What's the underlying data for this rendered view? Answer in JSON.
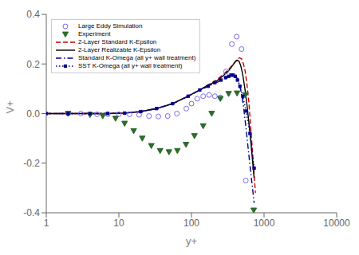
{
  "chart_data": {
    "type": "line",
    "xlabel": "y+",
    "ylabel": "V+",
    "log": "x",
    "xlim": [
      1,
      10000
    ],
    "ylim": [
      -0.4,
      0.4
    ],
    "xticks": [
      1,
      10,
      100,
      1000,
      10000
    ],
    "yticks": [
      -0.4,
      -0.2,
      {
        "value": 0.0,
        "label": "0.0"
      },
      0.2,
      0.4
    ],
    "grid": false,
    "legend": "upper left",
    "series": [
      {
        "name": "Large Eddy Simulation",
        "type": "scatter",
        "color": "#7B68EE",
        "marker": "circle",
        "line_style": "none",
        "x": [
          2,
          3,
          5,
          7,
          10,
          14,
          19,
          26,
          35,
          47,
          63,
          85,
          100,
          120,
          145,
          175,
          210,
          250,
          300,
          360,
          420,
          490,
          560
        ],
        "values": [
          0.0,
          0.0,
          -0.003,
          -0.003,
          -0.003,
          -0.003,
          -0.005,
          -0.01,
          -0.012,
          -0.01,
          0.0,
          0.02,
          0.04,
          0.06,
          0.07,
          0.075,
          0.07,
          0.065,
          0.17,
          0.28,
          0.31,
          0.26,
          -0.27
        ]
      },
      {
        "name": "Experiment",
        "type": "scatter",
        "color": "#2E6B2E",
        "marker": "triangle_down",
        "line_style": "none",
        "x": [
          2,
          4,
          6,
          9,
          12,
          16,
          21,
          28,
          37,
          49,
          64,
          84,
          110,
          145,
          190,
          250,
          325,
          425,
          555,
          720
        ],
        "values": [
          0.0,
          -0.005,
          -0.01,
          -0.02,
          -0.04,
          -0.07,
          -0.1,
          -0.13,
          -0.15,
          -0.155,
          -0.15,
          -0.125,
          -0.09,
          -0.05,
          0.0,
          0.06,
          0.08,
          0.082,
          0.075,
          -0.39
        ]
      },
      {
        "name": "2-Layer Standard K-Epsilon",
        "type": "line",
        "color": "#CC0000",
        "marker": "none",
        "line_style": "dashed",
        "x": [
          1,
          2,
          4,
          7,
          12,
          20,
          33,
          55,
          90,
          130,
          170,
          220,
          280,
          340,
          390,
          430,
          460,
          490,
          520,
          550,
          580,
          620,
          680,
          760
        ],
        "values": [
          0.0,
          0.0,
          0.0,
          0.0,
          0.002,
          0.008,
          0.02,
          0.04,
          0.07,
          0.095,
          0.115,
          0.135,
          0.16,
          0.185,
          0.205,
          0.22,
          0.225,
          0.22,
          0.2,
          0.17,
          0.12,
          0.04,
          -0.12,
          -0.32
        ]
      },
      {
        "name": "2-Layer Realizable K-Epsilon",
        "type": "line",
        "color": "#000000",
        "marker": "none",
        "line_style": "solid",
        "x": [
          1,
          2,
          4,
          7,
          12,
          20,
          33,
          55,
          90,
          130,
          170,
          220,
          280,
          330,
          370,
          405,
          430,
          455,
          480,
          510,
          545,
          590,
          650,
          730
        ],
        "values": [
          0.0,
          0.0,
          0.0,
          0.0,
          0.002,
          0.008,
          0.02,
          0.04,
          0.07,
          0.095,
          0.115,
          0.13,
          0.155,
          0.175,
          0.195,
          0.21,
          0.215,
          0.21,
          0.19,
          0.155,
          0.1,
          0.02,
          -0.1,
          -0.26
        ]
      },
      {
        "name": "Standard K-Omega (all y+ wall treatment)",
        "type": "line",
        "color": "#00008B",
        "marker": "none",
        "line_style": "dashdot",
        "x": [
          1,
          2,
          4,
          7,
          12,
          20,
          33,
          55,
          90,
          130,
          170,
          220,
          270,
          315,
          345,
          370,
          390,
          410,
          430,
          455,
          485,
          520,
          570,
          640,
          730
        ],
        "values": [
          0.0,
          0.0,
          0.0,
          0.0,
          0.002,
          0.008,
          0.02,
          0.04,
          0.07,
          0.095,
          0.11,
          0.125,
          0.135,
          0.145,
          0.15,
          0.155,
          0.155,
          0.15,
          0.14,
          0.12,
          0.085,
          0.03,
          -0.07,
          -0.21,
          -0.36
        ]
      },
      {
        "name": "SST K-Omega (all y+ wall treatment)",
        "type": "line",
        "color": "#00008B",
        "marker": "square",
        "line_style": "dotted",
        "x": [
          1,
          2,
          4,
          7,
          12,
          20,
          33,
          55,
          90,
          130,
          170,
          210,
          255,
          295,
          325,
          350,
          375,
          400,
          430,
          465,
          510,
          565,
          640,
          730
        ],
        "values": [
          0.0,
          0.0,
          0.0,
          0.0,
          0.002,
          0.008,
          0.02,
          0.04,
          0.07,
          0.095,
          0.11,
          0.125,
          0.135,
          0.145,
          0.15,
          0.155,
          0.155,
          0.15,
          0.135,
          0.11,
          0.07,
          0.01,
          -0.08,
          -0.22
        ]
      }
    ]
  }
}
